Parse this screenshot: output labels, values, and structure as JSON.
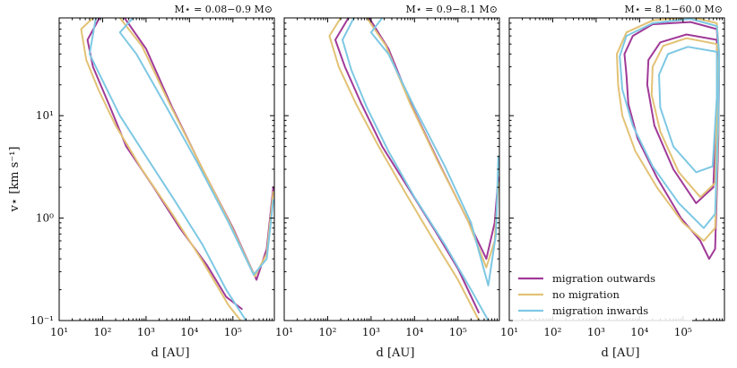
{
  "chart_data": {
    "type": "line",
    "xlabel": "d [AU]",
    "ylabel": "v⋆ [km s⁻¹]",
    "xscale": "log",
    "yscale": "log",
    "xlim": [
      10,
      900000
    ],
    "ylim": [
      0.1,
      90
    ],
    "x_ticks": [
      {
        "value": 10,
        "label": "10¹"
      },
      {
        "value": 100,
        "label": "10²"
      },
      {
        "value": 1000,
        "label": "10³"
      },
      {
        "value": 10000,
        "label": "10⁴"
      },
      {
        "value": 100000,
        "label": "10⁵"
      }
    ],
    "y_ticks": [
      {
        "value": 0.1,
        "label": "10⁻¹"
      },
      {
        "value": 1,
        "label": "10⁰"
      },
      {
        "value": 10,
        "label": "10¹"
      }
    ],
    "legend": {
      "placement": "lower-left of third panel",
      "entries": [
        {
          "name": "migration outwards",
          "color": "#a03a98"
        },
        {
          "name": "no migration",
          "color": "#e2c275"
        },
        {
          "name": "migration inwards",
          "color": "#7ec8e3"
        }
      ]
    },
    "panels": [
      {
        "title": "M⋆ = 0.08−0.9 M⊙",
        "series": [
          {
            "name": "migration outwards",
            "color": "#a03a98",
            "contours": [
              [
                [
                  85,
                  90
                ],
                [
                  45,
                  55
                ],
                [
                  60,
                  30
                ],
                [
                  150,
                  12
                ],
                [
                  350,
                  5
                ],
                [
                  1500,
                  2
                ],
                [
                  6000,
                  0.8
                ],
                [
                  25000,
                  0.35
                ],
                [
                  70000,
                  0.17
                ],
                [
                  160000,
                  0.13
                ]
              ],
              [
                [
                  320,
                  90
                ],
                [
                  1000,
                  45
                ],
                [
                  4000,
                  12
                ],
                [
                  20000,
                  3
                ],
                [
                  100000,
                  0.8
                ],
                [
                  350000,
                  0.25
                ],
                [
                  600000,
                  0.5
                ],
                [
                  850000,
                  2
                ]
              ]
            ]
          },
          {
            "name": "no migration",
            "color": "#e2c275",
            "contours": [
              [
                [
                  60,
                  90
                ],
                [
                  32,
                  70
                ],
                [
                  42,
                  35
                ],
                [
                  80,
                  18
                ],
                [
                  200,
                  8
                ],
                [
                  800,
                  3
                ],
                [
                  4000,
                  1.1
                ],
                [
                  20000,
                  0.38
                ],
                [
                  80000,
                  0.14
                ],
                [
                  230000,
                  0.08
                ]
              ],
              [
                [
                  250,
                  90
                ],
                [
                  800,
                  48
                ],
                [
                  3500,
                  13
                ],
                [
                  18000,
                  3.3
                ],
                [
                  90000,
                  0.85
                ],
                [
                  320000,
                  0.27
                ],
                [
                  600000,
                  0.45
                ],
                [
                  850000,
                  1.8
                ]
              ]
            ]
          },
          {
            "name": "migration inwards",
            "color": "#7ec8e3",
            "contours": [
              [
                [
                  70,
                  90
                ],
                [
                  50,
                  40
                ],
                [
                  100,
                  22
                ],
                [
                  250,
                  10
                ],
                [
                  1000,
                  4
                ],
                [
                  4500,
                  1.5
                ],
                [
                  20000,
                  0.55
                ],
                [
                  70000,
                  0.2
                ],
                [
                  200000,
                  0.1
                ]
              ],
              [
                [
                  500,
                  90
                ],
                [
                  250,
                  65
                ],
                [
                  600,
                  40
                ],
                [
                  3000,
                  12
                ],
                [
                  15000,
                  3.5
                ],
                [
                  80000,
                  0.9
                ],
                [
                  300000,
                  0.28
                ],
                [
                  600000,
                  0.4
                ],
                [
                  850000,
                  1.5
                ]
              ]
            ]
          }
        ]
      },
      {
        "title": "M⋆ = 0.9−8.1 M⊙",
        "series": [
          {
            "name": "migration outwards",
            "color": "#a03a98",
            "contours": [
              [
                [
                  300,
                  90
                ],
                [
                  150,
                  55
                ],
                [
                  250,
                  30
                ],
                [
                  600,
                  13
                ],
                [
                  1800,
                  5
                ],
                [
                  7000,
                  2
                ],
                [
                  30000,
                  0.75
                ],
                [
                  100000,
                  0.32
                ],
                [
                  300000,
                  0.12
                ]
              ],
              [
                [
                  900,
                  90
                ],
                [
                  2500,
                  45
                ],
                [
                  9000,
                  12
                ],
                [
                  40000,
                  3.2
                ],
                [
                  180000,
                  0.9
                ],
                [
                  450000,
                  0.4
                ],
                [
                  700000,
                  0.9
                ],
                [
                  850000,
                  2.5
                ]
              ]
            ]
          },
          {
            "name": "no migration",
            "color": "#e2c275",
            "contours": [
              [
                [
                  200,
                  90
                ],
                [
                  110,
                  60
                ],
                [
                  180,
                  30
                ],
                [
                  450,
                  13
                ],
                [
                  1500,
                  5
                ],
                [
                  6000,
                  1.8
                ],
                [
                  25000,
                  0.65
                ],
                [
                  100000,
                  0.25
                ],
                [
                  400000,
                  0.08
                ]
              ],
              [
                [
                  800,
                  90
                ],
                [
                  2200,
                  48
                ],
                [
                  8000,
                  13
                ],
                [
                  35000,
                  3.5
                ],
                [
                  160000,
                  1
                ],
                [
                  450000,
                  0.33
                ],
                [
                  700000,
                  0.6
                ],
                [
                  850000,
                  2.2
                ]
              ]
            ]
          },
          {
            "name": "migration inwards",
            "color": "#7ec8e3",
            "contours": [
              [
                [
                  400,
                  90
                ],
                [
                  220,
                  55
                ],
                [
                  350,
                  28
                ],
                [
                  800,
                  12
                ],
                [
                  2500,
                  4.5
                ],
                [
                  10000,
                  1.6
                ],
                [
                  50000,
                  0.55
                ],
                [
                  200000,
                  0.2
                ],
                [
                  500000,
                  0.1
                ]
              ],
              [
                [
                  1800,
                  90
                ],
                [
                  1000,
                  65
                ],
                [
                  2500,
                  40
                ],
                [
                  10000,
                  12
                ],
                [
                  50000,
                  3.2
                ],
                [
                  200000,
                  0.9
                ],
                [
                  500000,
                  0.22
                ],
                [
                  750000,
                  0.7
                ],
                [
                  850000,
                  4
                ]
              ]
            ]
          }
        ]
      },
      {
        "title": "M⋆ = 8.1−60.0 M⊙",
        "series": [
          {
            "name": "migration outwards",
            "color": "#a03a98",
            "contours": [
              [
                [
                  600000,
                  70
                ],
                [
                  150000,
                  82
                ],
                [
                  20000,
                  78
                ],
                [
                  7000,
                  60
                ],
                [
                  4500,
                  40
                ],
                [
                  5000,
                  25
                ],
                [
                  5500,
                  13
                ],
                [
                  9000,
                  6
                ],
                [
                  25000,
                  2.5
                ],
                [
                  90000,
                  1
                ],
                [
                  250000,
                  0.6
                ],
                [
                  400000,
                  0.4
                ],
                [
                  550000,
                  0.5
                ],
                [
                  650000,
                  6
                ],
                [
                  680000,
                  30
                ],
                [
                  600000,
                  70
                ]
              ],
              [
                [
                  600000,
                  55
                ],
                [
                  120000,
                  62
                ],
                [
                  30000,
                  52
                ],
                [
                  16000,
                  35
                ],
                [
                  15000,
                  20
                ],
                [
                  22000,
                  8
                ],
                [
                  60000,
                  3
                ],
                [
                  200000,
                  1.4
                ],
                [
                  500000,
                  2
                ],
                [
                  620000,
                  20
                ],
                [
                  600000,
                  55
                ]
              ]
            ]
          },
          {
            "name": "no migration",
            "color": "#e2c275",
            "contours": [
              [
                [
                  600000,
                  80
                ],
                [
                  150000,
                  92
                ],
                [
                  20000,
                  85
                ],
                [
                  5000,
                  65
                ],
                [
                  3000,
                  40
                ],
                [
                  3200,
                  20
                ],
                [
                  4000,
                  10
                ],
                [
                  8000,
                  4.5
                ],
                [
                  25000,
                  2
                ],
                [
                  100000,
                  0.9
                ],
                [
                  300000,
                  0.6
                ],
                [
                  550000,
                  0.8
                ],
                [
                  650000,
                  8
                ],
                [
                  680000,
                  40
                ],
                [
                  600000,
                  80
                ]
              ],
              [
                [
                  600000,
                  50
                ],
                [
                  120000,
                  57
                ],
                [
                  35000,
                  48
                ],
                [
                  20000,
                  30
                ],
                [
                  19000,
                  16
                ],
                [
                  30000,
                  7
                ],
                [
                  80000,
                  2.8
                ],
                [
                  250000,
                  1.6
                ],
                [
                  550000,
                  2.2
                ],
                [
                  630000,
                  22
                ],
                [
                  600000,
                  50
                ]
              ]
            ]
          },
          {
            "name": "migration inwards",
            "color": "#7ec8e3",
            "contours": [
              [
                [
                  600000,
                  75
                ],
                [
                  150000,
                  88
                ],
                [
                  20000,
                  80
                ],
                [
                  5000,
                  60
                ],
                [
                  3500,
                  38
                ],
                [
                  4000,
                  18
                ],
                [
                  7000,
                  8
                ],
                [
                  20000,
                  3.2
                ],
                [
                  80000,
                  1.4
                ],
                [
                  300000,
                  0.8
                ],
                [
                  550000,
                  1.1
                ],
                [
                  650000,
                  10
                ],
                [
                  680000,
                  40
                ],
                [
                  600000,
                  75
                ]
              ],
              [
                [
                  600000,
                  42
                ],
                [
                  130000,
                  47
                ],
                [
                  45000,
                  40
                ],
                [
                  28000,
                  25
                ],
                [
                  30000,
                  12
                ],
                [
                  60000,
                  5
                ],
                [
                  200000,
                  2.8
                ],
                [
                  480000,
                  3.2
                ],
                [
                  600000,
                  15
                ],
                [
                  600000,
                  42
                ]
              ]
            ]
          }
        ]
      }
    ]
  }
}
